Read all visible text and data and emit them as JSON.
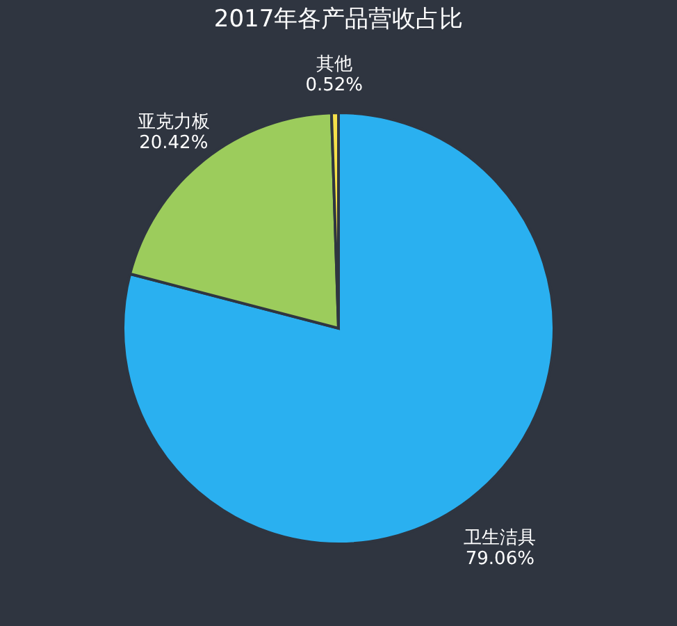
{
  "chart_data": {
    "type": "pie",
    "title": "2017年各产品营收占比",
    "categories": [
      "卫生洁具",
      "亚克力板",
      "其他"
    ],
    "values": [
      79.06,
      20.42,
      0.52
    ],
    "colors": [
      "#2ab0f0",
      "#9ccc5c",
      "#f5e04a"
    ],
    "value_labels": [
      "79.06%",
      "20.42%",
      "0.52%"
    ],
    "legend": false
  }
}
